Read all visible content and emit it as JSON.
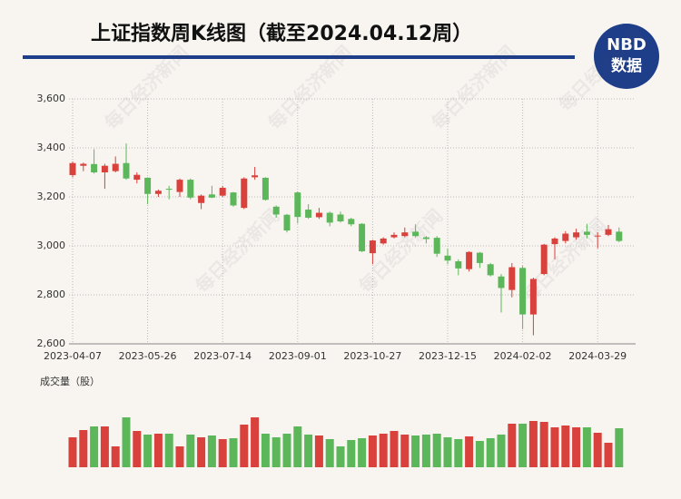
{
  "chart_data": {
    "type": "candlestick",
    "title": "上证指数周K线图（截至2024.04.12周）",
    "logo": "NBD",
    "logo_sub": "数据",
    "watermark": "每日经济新闻",
    "volume_label": "成交量（股）",
    "categories": [
      "2023-04-07",
      null,
      null,
      null,
      null,
      null,
      null,
      "2023-05-26",
      null,
      null,
      null,
      null,
      null,
      null,
      "2023-07-14",
      null,
      null,
      null,
      null,
      null,
      null,
      "2023-09-01",
      null,
      null,
      null,
      null,
      null,
      null,
      "2023-10-27",
      null,
      null,
      null,
      null,
      null,
      null,
      "2023-12-15",
      null,
      null,
      null,
      null,
      null,
      null,
      "2024-02-02",
      null,
      null,
      null,
      null,
      null,
      null,
      "2024-03-29",
      null,
      null
    ],
    "open": [
      3289,
      3327,
      3334,
      3300,
      3305,
      3338,
      3270,
      3278,
      3212,
      3233,
      3220,
      3270,
      3175,
      3210,
      3205,
      3218,
      3155,
      3280,
      3278,
      3160,
      3127,
      3218,
      3148,
      3117,
      3135,
      3128,
      3110,
      3090,
      2970,
      3010,
      3035,
      3040,
      3058,
      3035,
      3033,
      2960,
      2937,
      2905,
      2972,
      2925,
      2875,
      2820,
      2910,
      2720,
      2885,
      3007,
      3020,
      3035,
      3058,
      3040,
      3045,
      3058
    ],
    "high": [
      3345,
      3340,
      3395,
      3335,
      3365,
      3418,
      3300,
      3280,
      3230,
      3245,
      3275,
      3275,
      3210,
      3245,
      3245,
      3220,
      3280,
      3322,
      3280,
      3165,
      3130,
      3222,
      3170,
      3155,
      3140,
      3140,
      3115,
      3093,
      3025,
      3035,
      3055,
      3075,
      3088,
      3040,
      3040,
      2990,
      2945,
      2978,
      2975,
      2930,
      2885,
      2930,
      2918,
      2870,
      3008,
      3035,
      3060,
      3070,
      3090,
      3055,
      3085,
      3075
    ],
    "low": [
      3280,
      3305,
      3295,
      3233,
      3300,
      3270,
      3255,
      3170,
      3200,
      3190,
      3200,
      3190,
      3150,
      3195,
      3200,
      3160,
      3150,
      3270,
      3185,
      3115,
      3055,
      3092,
      3110,
      3110,
      3080,
      3095,
      3080,
      2975,
      2925,
      3005,
      3030,
      3035,
      3035,
      3010,
      2955,
      2925,
      2880,
      2895,
      2910,
      2875,
      2728,
      2790,
      2660,
      2635,
      2880,
      2945,
      3010,
      3025,
      3030,
      2990,
      3040,
      3015
    ],
    "close": [
      3338,
      3335,
      3300,
      3327,
      3335,
      3275,
      3290,
      3212,
      3225,
      3230,
      3270,
      3197,
      3205,
      3197,
      3237,
      3165,
      3275,
      3288,
      3188,
      3128,
      3063,
      3118,
      3115,
      3135,
      3095,
      3100,
      3088,
      2978,
      3022,
      3030,
      3045,
      3055,
      3040,
      3028,
      2968,
      2940,
      2908,
      2975,
      2930,
      2880,
      2828,
      2913,
      2720,
      2865,
      3005,
      3030,
      3050,
      3055,
      3045,
      3042,
      3068,
      3020
    ],
    "volume": [
      33,
      41,
      45,
      45,
      23,
      55,
      40,
      36,
      37,
      37,
      23,
      36,
      33,
      35,
      31,
      32,
      47,
      55,
      37,
      33,
      37,
      45,
      36,
      35,
      31,
      23,
      30,
      32,
      35,
      37,
      40,
      36,
      35,
      36,
      37,
      33,
      31,
      34,
      29,
      32,
      36,
      48,
      48,
      51,
      50,
      44,
      46,
      44,
      44,
      38,
      27,
      43
    ],
    "volume_ylim": [
      0,
      60
    ],
    "up_color": "#d9413c",
    "down_color": "#5cb65a",
    "ylim": [
      2600,
      3600
    ],
    "yticks": [
      {
        "value": 2600,
        "label": "2,600"
      },
      {
        "value": 2800,
        "label": "2,800"
      },
      {
        "value": 3000,
        "label": "3,000"
      },
      {
        "value": 3200,
        "label": "3,200"
      },
      {
        "value": 3400,
        "label": "3,400"
      },
      {
        "value": 3600,
        "label": "3,600"
      }
    ],
    "grid": true
  }
}
